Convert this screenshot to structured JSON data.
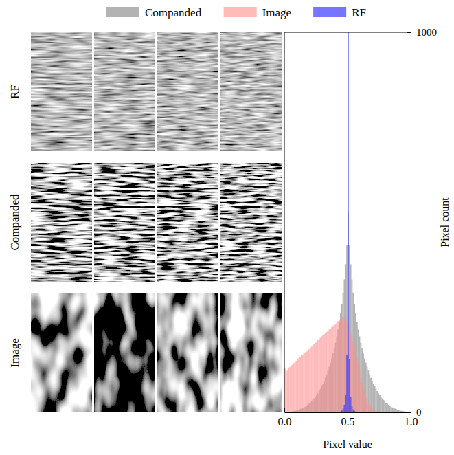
{
  "image_grid": {
    "row_labels": [
      "RF",
      "Companded",
      "Image"
    ],
    "columns": 4
  },
  "chart_data": {
    "type": "histogram",
    "x_label": "Pixel value",
    "y_label": "Pixel count",
    "xlim": [
      0,
      1
    ],
    "xticks": [
      {
        "value": 0,
        "label": "0.0"
      },
      {
        "value": 0.5,
        "label": "0.5"
      },
      {
        "value": 1,
        "label": "1.0"
      }
    ],
    "ylim": [
      0,
      1000
    ],
    "yticks": [
      0,
      1000
    ],
    "legend": "top",
    "bins": [
      0,
      0.01,
      0.02,
      0.03,
      0.04,
      0.05,
      0.06,
      0.07,
      0.08,
      0.09,
      0.1,
      0.11,
      0.12,
      0.13,
      0.14,
      0.15,
      0.16,
      0.17,
      0.18,
      0.19,
      0.2,
      0.21,
      0.22,
      0.23,
      0.24,
      0.25,
      0.26,
      0.27,
      0.28,
      0.29,
      0.3,
      0.31,
      0.32,
      0.33,
      0.34,
      0.35,
      0.36,
      0.37,
      0.38,
      0.39,
      0.4,
      0.41,
      0.42,
      0.43,
      0.44,
      0.45,
      0.46,
      0.47,
      0.48,
      0.49,
      0.5,
      0.51,
      0.52,
      0.53,
      0.54,
      0.55,
      0.56,
      0.57,
      0.58,
      0.59,
      0.6,
      0.61,
      0.62,
      0.63,
      0.64,
      0.65,
      0.66,
      0.67,
      0.68,
      0.69,
      0.7,
      0.71,
      0.72,
      0.73,
      0.74,
      0.75,
      0.76,
      0.77,
      0.78,
      0.79,
      0.8,
      0.81,
      0.82,
      0.83,
      0.84,
      0.85,
      0.86,
      0.87,
      0.88,
      0.89,
      0.9,
      0.91,
      0.92,
      0.93,
      0.94,
      0.95,
      0.96,
      0.97,
      0.98,
      0.99,
      1
    ],
    "series": [
      {
        "name": "Companded",
        "color": "#9a9a9a",
        "values": [
          0,
          1,
          1,
          1,
          2,
          2,
          3,
          4,
          4,
          5,
          6,
          7,
          9,
          10,
          12,
          13,
          15,
          18,
          20,
          23,
          25,
          29,
          33,
          37,
          41,
          45,
          50,
          56,
          62,
          69,
          75,
          83,
          91,
          100,
          110,
          120,
          131,
          142,
          155,
          168,
          183,
          200,
          218,
          238,
          260,
          285,
          315,
          350,
          390,
          440,
          525,
          440,
          390,
          350,
          315,
          285,
          260,
          238,
          218,
          200,
          183,
          168,
          155,
          142,
          131,
          120,
          110,
          100,
          91,
          83,
          75,
          69,
          62,
          56,
          50,
          45,
          41,
          37,
          33,
          29,
          25,
          23,
          20,
          18,
          15,
          13,
          12,
          10,
          9,
          7,
          6,
          5,
          4,
          4,
          3,
          2,
          2,
          1,
          1,
          1
        ]
      },
      {
        "name": "Image",
        "color": "#ff8c8c",
        "values": [
          115,
          108,
          112,
          118,
          120,
          124,
          126,
          130,
          133,
          136,
          140,
          143,
          146,
          150,
          152,
          155,
          158,
          160,
          163,
          166,
          170,
          173,
          176,
          180,
          183,
          186,
          190,
          193,
          196,
          200,
          203,
          206,
          210,
          212,
          215,
          218,
          220,
          224,
          227,
          230,
          233,
          236,
          240,
          243,
          246,
          248,
          250,
          250,
          246,
          240,
          228,
          220,
          210,
          200,
          188,
          175,
          160,
          145,
          128,
          110,
          92,
          78,
          64,
          52,
          42,
          33,
          26,
          20,
          15,
          11,
          8,
          6,
          5,
          4,
          3,
          2,
          2,
          1,
          1,
          1,
          0,
          0,
          0,
          0,
          0,
          0,
          0,
          0,
          0,
          0,
          0,
          0,
          0,
          0,
          0,
          0,
          0,
          0,
          0,
          0
        ]
      },
      {
        "name": "RF",
        "color": "#3a3aff",
        "values": [
          0,
          0,
          0,
          0,
          0,
          0,
          0,
          0,
          0,
          0,
          0,
          0,
          0,
          0,
          0,
          0,
          0,
          0,
          0,
          0,
          0,
          0,
          0,
          0,
          0,
          0,
          0,
          0,
          0,
          0,
          0,
          0,
          0,
          0,
          0,
          0,
          0,
          0,
          0,
          0,
          0,
          0,
          0,
          0,
          2,
          5,
          10,
          20,
          45,
          150,
          1000,
          140,
          40,
          18,
          8,
          4,
          2,
          0,
          0,
          0,
          0,
          0,
          0,
          0,
          0,
          0,
          0,
          0,
          0,
          0,
          0,
          0,
          0,
          0,
          0,
          0,
          0,
          0,
          0,
          0,
          0,
          0,
          0,
          0,
          0,
          0,
          0,
          0,
          0,
          0,
          0,
          0,
          0,
          0,
          0,
          0,
          0,
          0,
          0,
          0
        ]
      }
    ]
  }
}
